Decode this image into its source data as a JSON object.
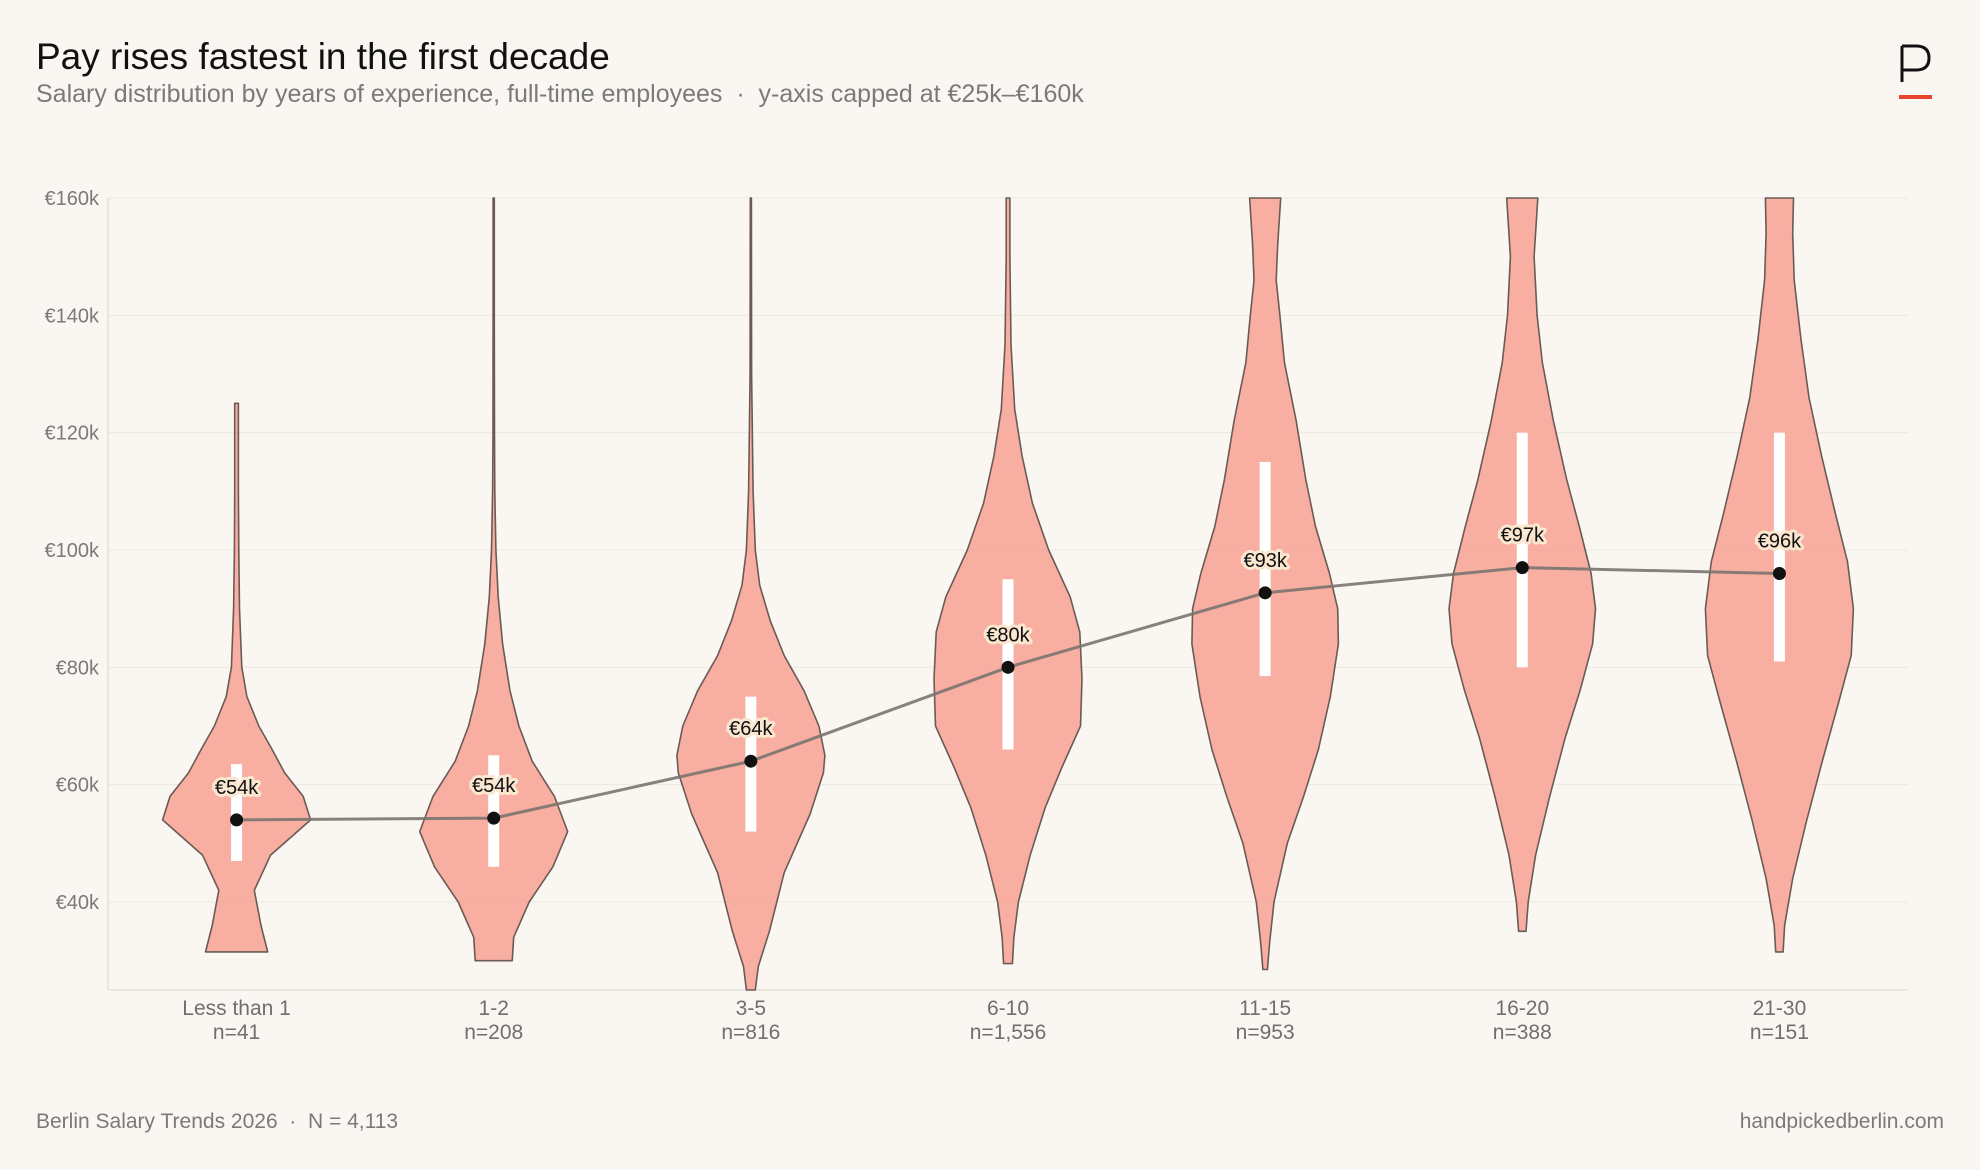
{
  "header": {
    "title": "Pay rises fastest in the first decade",
    "subtitle": "Salary distribution by years of experience, full-time employees  ·  y-axis capped at €25k–€160k"
  },
  "brand": {
    "logo_icon": "p-logo-icon",
    "accent_color": "#e8452c"
  },
  "footer": {
    "source": "Berlin Salary Trends 2026  ·  N = 4,113",
    "site": "handpickedberlin.com"
  },
  "chart_data": {
    "type": "violin",
    "title": "Pay rises fastest in the first decade",
    "categories": [
      "Less than 1",
      "1-2",
      "3-5",
      "6-10",
      "11-15",
      "16-20",
      "21-30"
    ],
    "counts": [
      "n=41",
      "n=208",
      "n=816",
      "n=1,556",
      "n=953",
      "n=388",
      "n=151"
    ],
    "ylim": [
      25,
      160
    ],
    "yticks": [
      40,
      60,
      80,
      100,
      120,
      140,
      160
    ],
    "ytick_labels": [
      "€40k",
      "€60k",
      "€80k",
      "€100k",
      "€120k",
      "€140k",
      "€160k"
    ],
    "grid": true,
    "colors": {
      "violin_fill": "#f7a193",
      "violin_stroke": "#6b5a56",
      "iqr_bar": "#ffffff",
      "median_line": "#7a7470",
      "median_dot": "#111111",
      "gridline": "#ece7e0"
    },
    "medians": [
      54,
      54.3,
      64,
      80,
      92.7,
      97,
      96
    ],
    "median_labels": [
      "€54k",
      "€54k",
      "€64k",
      "€80k",
      "€93k",
      "€97k",
      "€96k"
    ],
    "iqr": [
      [
        47,
        63.5
      ],
      [
        46,
        65
      ],
      [
        52,
        75
      ],
      [
        66,
        95
      ],
      [
        78.5,
        115
      ],
      [
        80,
        120
      ],
      [
        81,
        120
      ]
    ],
    "min": [
      31.5,
      30,
      25,
      29.5,
      28.5,
      35,
      31.5
    ],
    "max": [
      125,
      160,
      160,
      160,
      160,
      160,
      160
    ],
    "density_profile": [
      [
        [
          31.5,
          0.42
        ],
        [
          36,
          0.33
        ],
        [
          42,
          0.24
        ],
        [
          48,
          0.46
        ],
        [
          54,
          1.0
        ],
        [
          58,
          0.9
        ],
        [
          62,
          0.65
        ],
        [
          66,
          0.48
        ],
        [
          70,
          0.3
        ],
        [
          75,
          0.14
        ],
        [
          80,
          0.07
        ],
        [
          90,
          0.04
        ],
        [
          100,
          0.03
        ],
        [
          110,
          0.025
        ],
        [
          120,
          0.025
        ],
        [
          125,
          0.025
        ]
      ],
      [
        [
          30,
          0.25
        ],
        [
          34,
          0.27
        ],
        [
          40,
          0.48
        ],
        [
          46,
          0.8
        ],
        [
          52,
          1.0
        ],
        [
          58,
          0.82
        ],
        [
          64,
          0.52
        ],
        [
          70,
          0.34
        ],
        [
          76,
          0.22
        ],
        [
          84,
          0.12
        ],
        [
          92,
          0.06
        ],
        [
          100,
          0.03
        ],
        [
          110,
          0.015
        ],
        [
          120,
          0.01
        ],
        [
          140,
          0.008
        ],
        [
          160,
          0.008
        ]
      ],
      [
        [
          25,
          0.06
        ],
        [
          29,
          0.1
        ],
        [
          35,
          0.25
        ],
        [
          45,
          0.45
        ],
        [
          55,
          0.8
        ],
        [
          62,
          0.98
        ],
        [
          65,
          1.0
        ],
        [
          70,
          0.92
        ],
        [
          76,
          0.72
        ],
        [
          82,
          0.45
        ],
        [
          88,
          0.26
        ],
        [
          94,
          0.12
        ],
        [
          100,
          0.06
        ],
        [
          110,
          0.03
        ],
        [
          130,
          0.01
        ],
        [
          160,
          0.008
        ]
      ],
      [
        [
          29.5,
          0.06
        ],
        [
          34,
          0.08
        ],
        [
          40,
          0.14
        ],
        [
          48,
          0.3
        ],
        [
          56,
          0.5
        ],
        [
          63,
          0.73
        ],
        [
          70,
          0.98
        ],
        [
          78,
          1.0
        ],
        [
          86,
          0.97
        ],
        [
          92,
          0.84
        ],
        [
          100,
          0.55
        ],
        [
          108,
          0.33
        ],
        [
          116,
          0.19
        ],
        [
          124,
          0.09
        ],
        [
          135,
          0.04
        ],
        [
          150,
          0.025
        ],
        [
          160,
          0.025
        ]
      ],
      [
        [
          28.5,
          0.03
        ],
        [
          33,
          0.06
        ],
        [
          40,
          0.12
        ],
        [
          50,
          0.3
        ],
        [
          58,
          0.52
        ],
        [
          66,
          0.72
        ],
        [
          75,
          0.88
        ],
        [
          84,
          0.99
        ],
        [
          90,
          0.98
        ],
        [
          96,
          0.87
        ],
        [
          104,
          0.68
        ],
        [
          112,
          0.55
        ],
        [
          122,
          0.42
        ],
        [
          132,
          0.26
        ],
        [
          140,
          0.2
        ],
        [
          146,
          0.15
        ],
        [
          152,
          0.17
        ],
        [
          160,
          0.21
        ]
      ],
      [
        [
          35,
          0.05
        ],
        [
          40,
          0.08
        ],
        [
          48,
          0.18
        ],
        [
          58,
          0.37
        ],
        [
          68,
          0.58
        ],
        [
          76,
          0.78
        ],
        [
          84,
          0.95
        ],
        [
          90,
          0.99
        ],
        [
          96,
          0.93
        ],
        [
          104,
          0.77
        ],
        [
          112,
          0.6
        ],
        [
          122,
          0.42
        ],
        [
          132,
          0.27
        ],
        [
          140,
          0.2
        ],
        [
          150,
          0.16
        ],
        [
          160,
          0.21
        ]
      ],
      [
        [
          31.5,
          0.05
        ],
        [
          36,
          0.07
        ],
        [
          44,
          0.18
        ],
        [
          54,
          0.37
        ],
        [
          64,
          0.58
        ],
        [
          74,
          0.8
        ],
        [
          82,
          0.97
        ],
        [
          90,
          1.0
        ],
        [
          98,
          0.92
        ],
        [
          106,
          0.76
        ],
        [
          116,
          0.57
        ],
        [
          126,
          0.4
        ],
        [
          136,
          0.29
        ],
        [
          146,
          0.2
        ],
        [
          154,
          0.18
        ],
        [
          160,
          0.19
        ]
      ]
    ]
  }
}
